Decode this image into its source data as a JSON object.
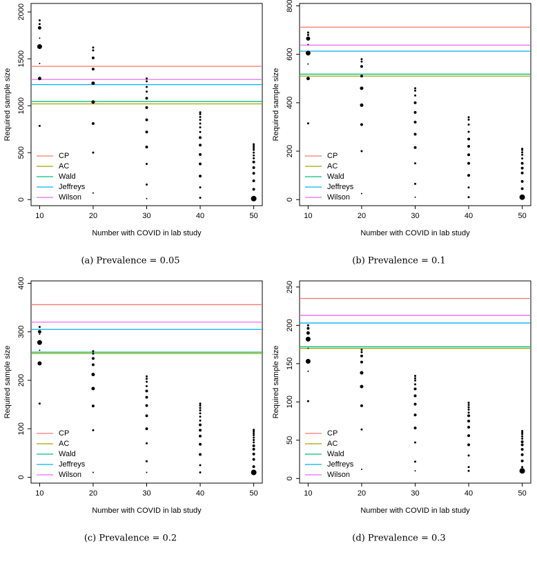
{
  "chart_data": [
    {
      "type": "scatter",
      "caption": "(a) Prevalence = 0.05",
      "xlabel": "Number with COVID in lab study",
      "ylabel": "Required sample size",
      "xlim": [
        8.4,
        51.6
      ],
      "xticks": [
        10,
        20,
        30,
        40,
        50
      ],
      "ylim": [
        -65,
        2090
      ],
      "yticks": [
        0,
        500,
        1000,
        1500,
        2000
      ],
      "legend": "bottomleft",
      "hlines": [
        {
          "name": "CP",
          "color": "#f8766d",
          "value": 1420
        },
        {
          "name": "AC",
          "color": "#a3a500",
          "value": 1020
        },
        {
          "name": "Wald",
          "color": "#00bf7d",
          "value": 1045
        },
        {
          "name": "Jeffreys",
          "color": "#00b0f6",
          "value": 1225
        },
        {
          "name": "Wilson",
          "color": "#e76bf3",
          "value": 1280
        }
      ],
      "points": {
        "color": "#000000",
        "x": [
          10,
          10,
          10,
          10,
          10,
          10,
          10,
          10,
          20,
          20,
          20,
          20,
          20,
          20,
          20,
          20,
          20,
          30,
          30,
          30,
          30,
          30,
          30,
          30,
          30,
          30,
          30,
          30,
          30,
          40,
          40,
          40,
          40,
          40,
          40,
          40,
          40,
          40,
          40,
          40,
          40,
          40,
          40,
          50,
          50,
          50,
          50,
          50,
          50,
          50,
          50,
          50,
          50,
          50,
          50,
          50
        ],
        "values": [
          1910,
          1870,
          1830,
          1720,
          1630,
          1450,
          1290,
          785,
          1620,
          1590,
          1510,
          1390,
          1240,
          1040,
          810,
          500,
          70,
          1290,
          1260,
          1200,
          1150,
          1080,
          980,
          850,
          720,
          560,
          380,
          160,
          10,
          930,
          910,
          880,
          850,
          810,
          770,
          720,
          660,
          580,
          480,
          380,
          250,
          130,
          20,
          590,
          570,
          550,
          530,
          500,
          470,
          440,
          400,
          340,
          280,
          200,
          110,
          10
        ],
        "sizes": [
          1.5,
          1.5,
          2.5,
          1,
          3.5,
          1,
          2.5,
          1.5,
          1.5,
          1.5,
          2,
          2,
          2.5,
          2.5,
          2,
          1.5,
          1,
          1.5,
          1.5,
          1.5,
          1.5,
          2,
          2,
          2,
          2,
          2,
          1.5,
          1.5,
          1,
          1.5,
          1.5,
          1.5,
          1.5,
          1.5,
          1.5,
          1.5,
          2,
          2,
          2,
          2,
          2,
          1.5,
          1.5,
          1.5,
          1.5,
          1.5,
          1.5,
          1.5,
          1.5,
          1.5,
          2,
          2,
          2,
          2,
          2,
          4
        ]
      }
    },
    {
      "type": "scatter",
      "caption": "(b) Prevalence = 0.1",
      "xlabel": "Number with COVID in lab study",
      "ylabel": "Required sample size",
      "xlim": [
        8.4,
        51.6
      ],
      "xticks": [
        10,
        20,
        30,
        40,
        50
      ],
      "ylim": [
        -25,
        810
      ],
      "yticks": [
        0,
        200,
        400,
        600,
        800
      ],
      "legend": "bottomleft",
      "hlines": [
        {
          "name": "CP",
          "color": "#f8766d",
          "value": 712
        },
        {
          "name": "AC",
          "color": "#a3a500",
          "value": 510
        },
        {
          "name": "Wald",
          "color": "#00bf7d",
          "value": 518
        },
        {
          "name": "Jeffreys",
          "color": "#00b0f6",
          "value": 613
        },
        {
          "name": "Wilson",
          "color": "#e76bf3",
          "value": 638
        }
      ],
      "points": {
        "color": "#000000",
        "x": [
          10,
          10,
          10,
          10,
          10,
          10,
          10,
          10,
          20,
          20,
          20,
          20,
          20,
          20,
          20,
          20,
          20,
          30,
          30,
          30,
          30,
          30,
          30,
          30,
          30,
          30,
          30,
          30,
          40,
          40,
          40,
          40,
          40,
          40,
          40,
          40,
          40,
          40,
          40,
          50,
          50,
          50,
          50,
          50,
          50,
          50,
          50,
          50,
          50,
          50
        ],
        "values": [
          690,
          680,
          665,
          640,
          605,
          560,
          500,
          315,
          580,
          570,
          550,
          510,
          460,
          390,
          310,
          200,
          25,
          460,
          450,
          430,
          400,
          360,
          320,
          270,
          215,
          150,
          65,
          10,
          340,
          330,
          310,
          280,
          250,
          220,
          185,
          150,
          100,
          50,
          10,
          210,
          205,
          195,
          185,
          170,
          150,
          130,
          110,
          75,
          45,
          10
        ],
        "sizes": [
          1.5,
          1.5,
          3,
          1,
          3.5,
          1,
          2.5,
          1.5,
          1.5,
          1.5,
          2,
          2,
          2.5,
          2.5,
          2,
          1.5,
          1,
          1.5,
          1.5,
          1.5,
          2,
          2,
          2,
          2,
          2,
          1.5,
          1.5,
          1,
          1.5,
          1.5,
          1.5,
          1.5,
          2,
          2,
          2,
          2,
          2,
          1.5,
          1.5,
          1.5,
          1.5,
          1.5,
          1.5,
          1.5,
          2,
          2,
          2,
          2,
          2,
          4
        ]
      }
    },
    {
      "type": "scatter",
      "caption": "(c) Prevalence = 0.2",
      "xlabel": "Number with COVID in lab study",
      "ylabel": "Required sample size",
      "xlim": [
        8.4,
        51.6
      ],
      "xticks": [
        10,
        20,
        30,
        40,
        50
      ],
      "ylim": [
        -12,
        405
      ],
      "yticks": [
        0,
        100,
        200,
        300,
        400
      ],
      "legend": "bottomleft",
      "hlines": [
        {
          "name": "CP",
          "color": "#f8766d",
          "value": 356
        },
        {
          "name": "AC",
          "color": "#a3a500",
          "value": 255
        },
        {
          "name": "Wald",
          "color": "#00bf7d",
          "value": 258
        },
        {
          "name": "Jeffreys",
          "color": "#00b0f6",
          "value": 305
        },
        {
          "name": "Wilson",
          "color": "#e76bf3",
          "value": 320
        }
      ],
      "points": {
        "color": "#000000",
        "x": [
          10,
          10,
          10,
          10,
          10,
          10,
          10,
          20,
          20,
          20,
          20,
          20,
          20,
          20,
          20,
          20,
          30,
          30,
          30,
          30,
          30,
          30,
          30,
          30,
          30,
          30,
          30,
          30,
          40,
          40,
          40,
          40,
          40,
          40,
          40,
          40,
          40,
          40,
          40,
          40,
          40,
          40,
          50,
          50,
          50,
          50,
          50,
          50,
          50,
          50,
          50,
          50,
          50,
          50,
          50
        ],
        "values": [
          310,
          300,
          295,
          278,
          262,
          235,
          152,
          260,
          255,
          245,
          232,
          212,
          183,
          147,
          97,
          10,
          208,
          203,
          197,
          188,
          178,
          165,
          148,
          127,
          100,
          70,
          33,
          10,
          152,
          148,
          143,
          138,
          132,
          125,
          117,
          108,
          97,
          85,
          68,
          47,
          25,
          10,
          98,
          95,
          91,
          87,
          82,
          77,
          72,
          65,
          58,
          48,
          37,
          22,
          10
        ],
        "sizes": [
          1.5,
          2.5,
          1,
          3.5,
          1,
          3,
          1.5,
          1.5,
          1.5,
          2,
          2,
          2.5,
          2.5,
          2,
          1.5,
          1,
          1.5,
          1.5,
          1.5,
          1.5,
          2,
          2,
          2,
          2,
          2,
          1.5,
          1.5,
          1,
          1.5,
          1.5,
          1.5,
          1.5,
          1.5,
          1.5,
          1.5,
          2,
          2,
          2,
          2,
          2,
          1.5,
          1.5,
          1.5,
          1.5,
          1.5,
          1.5,
          1.5,
          1.5,
          1.5,
          2,
          2,
          2,
          2,
          2,
          4
        ]
      }
    },
    {
      "type": "scatter",
      "caption": "(d) Prevalence = 0.3",
      "xlabel": "Number with COVID in lab study",
      "ylabel": "Required sample size",
      "xlim": [
        8.4,
        51.6
      ],
      "xticks": [
        10,
        20,
        30,
        40,
        50
      ],
      "ylim": [
        -6,
        258
      ],
      "yticks": [
        0,
        50,
        100,
        150,
        200,
        250
      ],
      "legend": "bottomleft",
      "hlines": [
        {
          "name": "CP",
          "color": "#f8766d",
          "value": 235
        },
        {
          "name": "AC",
          "color": "#a3a500",
          "value": 170
        },
        {
          "name": "Wald",
          "color": "#00bf7d",
          "value": 172
        },
        {
          "name": "Jeffreys",
          "color": "#00b0f6",
          "value": 203
        },
        {
          "name": "Wilson",
          "color": "#e76bf3",
          "value": 213
        }
      ],
      "points": {
        "color": "#000000",
        "x": [
          10,
          10,
          10,
          10,
          10,
          10,
          10,
          10,
          20,
          20,
          20,
          20,
          20,
          20,
          20,
          20,
          20,
          30,
          30,
          30,
          30,
          30,
          30,
          30,
          30,
          30,
          30,
          30,
          30,
          40,
          40,
          40,
          40,
          40,
          40,
          40,
          40,
          40,
          40,
          40,
          40,
          40,
          50,
          50,
          50,
          50,
          50,
          50,
          50,
          50,
          50,
          50,
          50,
          50
        ],
        "values": [
          200,
          196,
          190,
          182,
          170,
          153,
          140,
          101,
          168,
          165,
          160,
          152,
          138,
          120,
          95,
          64,
          12,
          134,
          131,
          128,
          123,
          117,
          108,
          97,
          83,
          66,
          47,
          22,
          10,
          99,
          96,
          93,
          90,
          86,
          82,
          75,
          67,
          56,
          44,
          30,
          15,
          10,
          62,
          60,
          58,
          55,
          52,
          48,
          44,
          38,
          31,
          23,
          15,
          10
        ],
        "sizes": [
          1.5,
          2,
          2.5,
          3.5,
          1,
          3.5,
          1,
          1.5,
          1.5,
          1.5,
          2,
          2,
          2.5,
          2.5,
          2,
          1.5,
          1,
          1.5,
          1.5,
          1.5,
          1.5,
          2,
          2,
          2,
          2,
          2,
          1.5,
          1.5,
          1,
          1.5,
          1.5,
          1.5,
          1.5,
          1.5,
          2,
          2,
          2,
          2,
          2,
          1.5,
          1.5,
          1.5,
          1.5,
          1.5,
          1.5,
          1.5,
          1.5,
          2,
          2,
          2,
          2,
          2,
          1.5,
          4
        ]
      }
    }
  ]
}
